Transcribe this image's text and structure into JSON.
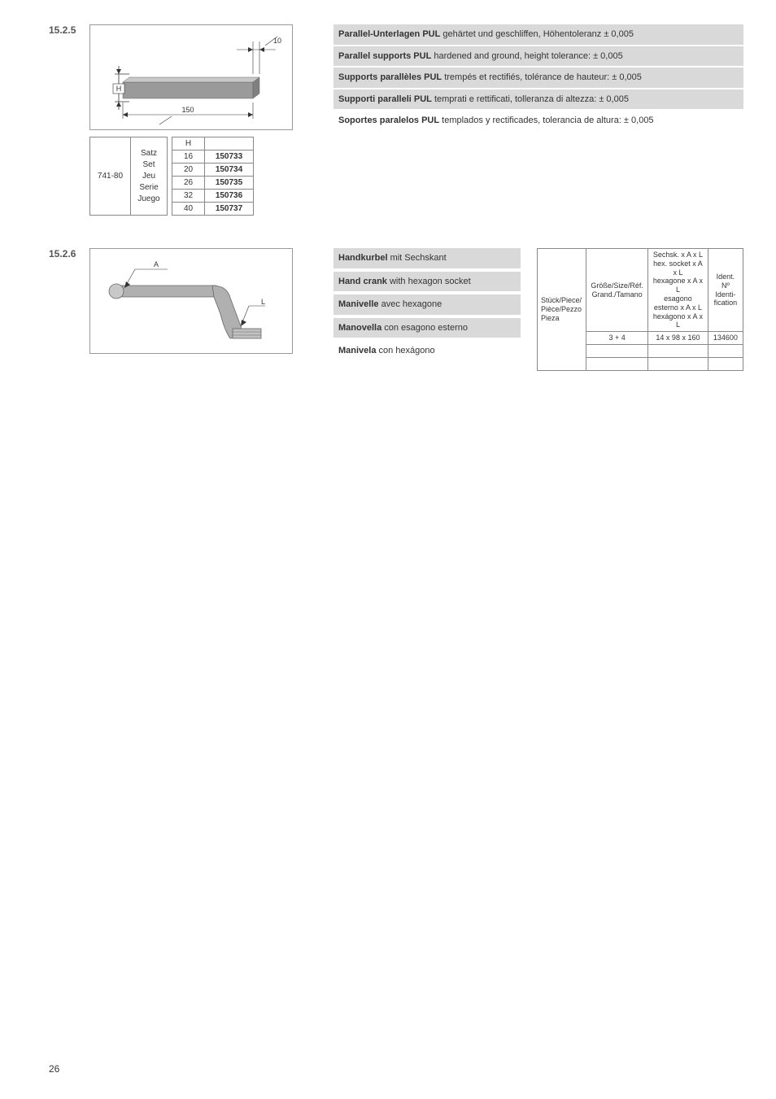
{
  "page_number": "26",
  "section1": {
    "number": "15.2.5",
    "diagram": {
      "label_H": "H",
      "label_top_dim": "10",
      "label_bottom_dim": "150",
      "bar_color": "#9a9a9a",
      "arrow_color": "#333333"
    },
    "descriptions": [
      {
        "bold": "Parallel-Unterlagen PUL",
        "rest": " gehärtet und geschliffen, Höhentoleranz ± 0,005",
        "shaded": true
      },
      {
        "bold": "Parallel supports PUL",
        "rest": " hardened and ground, height tolerance: ± 0,005",
        "shaded": true
      },
      {
        "bold": "Supports parallèles PUL",
        "rest": " trempés et rectifiés, tolérance de hauteur: ± 0,005",
        "shaded": true
      },
      {
        "bold": "Supporti paralleli PUL",
        "rest": " temprati e rettificati, tolleranza di altezza: ± 0,005",
        "shaded": true
      },
      {
        "bold": "Soportes paralelos PUL",
        "rest": " templados y rectificades, tolerancia de altura: ± 0,005",
        "shaded": false
      }
    ],
    "table": {
      "model": "741-80",
      "set_labels": [
        "Satz",
        "Set",
        "Jeu",
        "Serie",
        "Juego"
      ],
      "header_H": "H",
      "rows": [
        {
          "h": "16",
          "id": "150733"
        },
        {
          "h": "20",
          "id": "150734"
        },
        {
          "h": "26",
          "id": "150735"
        },
        {
          "h": "32",
          "id": "150736"
        },
        {
          "h": "40",
          "id": "150737"
        }
      ]
    }
  },
  "section2": {
    "number": "15.2.6",
    "diagram": {
      "label_A": "A",
      "label_L": "L",
      "crank_color": "#b0b0b0"
    },
    "descriptions": [
      {
        "bold": "Handkurbel",
        "rest": " mit Sechskant",
        "shaded": true
      },
      {
        "bold": "Hand crank",
        "rest": " with hexagon socket",
        "shaded": true
      },
      {
        "bold": "Manivelle",
        "rest": " avec hexagone",
        "shaded": true
      },
      {
        "bold": "Manovella",
        "rest": " con esagono esterno",
        "shaded": true
      },
      {
        "bold": "Manivela",
        "rest": " con hexágono",
        "shaded": false
      }
    ],
    "table": {
      "row_label_lines": [
        "Stück/Piece/",
        "Pièce/Pezzo",
        "Pieza"
      ],
      "col1_lines": [
        "Größe/Size/Réf.",
        "Grand./Tamano"
      ],
      "col2_lines": [
        "Sechsk. x A x L",
        "hex. socket x A x L",
        "hexagone  x A x L",
        "esagono esterno  x A x L",
        "hexágono  x A x L"
      ],
      "col3_lines": [
        "Ident.",
        "Nº Identi-",
        "fication"
      ],
      "rows": [
        {
          "c1": "3 + 4",
          "c2": "14 x 98 x 160",
          "c3": "134600"
        },
        {
          "c1": "",
          "c2": "",
          "c3": ""
        },
        {
          "c1": "",
          "c2": "",
          "c3": ""
        }
      ]
    }
  }
}
